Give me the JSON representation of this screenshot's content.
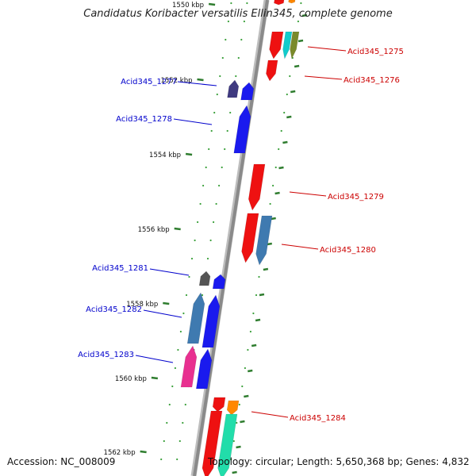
{
  "title": "Candidatus Koribacter versatilis Ellin345, complete genome",
  "accession": "Accession: NC_008009",
  "summary": "Topology: circular; Length: 5,650,368 bp; Genes: 4,832",
  "colors": {
    "forward_label": "#0000cc",
    "reverse_label": "#cc0000",
    "backbone": "#8a8a8a",
    "tick": "#2f7d2f",
    "dots": "#3aa03a"
  },
  "kbp_ticks": [
    {
      "label": "1550 kbp"
    },
    {
      "label": "1552 kbp"
    },
    {
      "label": "1554 kbp"
    },
    {
      "label": "1556 kbp"
    },
    {
      "label": "1558 kbp"
    },
    {
      "label": "1560 kbp"
    },
    {
      "label": "1562 kbp"
    }
  ],
  "gene_labels": [
    {
      "text": "Acid345_1275",
      "strand": "reverse"
    },
    {
      "text": "Acid345_1276",
      "strand": "reverse"
    },
    {
      "text": "Acid345_1277",
      "strand": "forward"
    },
    {
      "text": "Acid345_1278",
      "strand": "forward"
    },
    {
      "text": "Acid345_1279",
      "strand": "reverse"
    },
    {
      "text": "Acid345_1280",
      "strand": "reverse"
    },
    {
      "text": "Acid345_1281",
      "strand": "forward"
    },
    {
      "text": "Acid345_1282",
      "strand": "forward"
    },
    {
      "text": "Acid345_1283",
      "strand": "forward"
    },
    {
      "text": "Acid345_1284",
      "strand": "reverse"
    }
  ]
}
